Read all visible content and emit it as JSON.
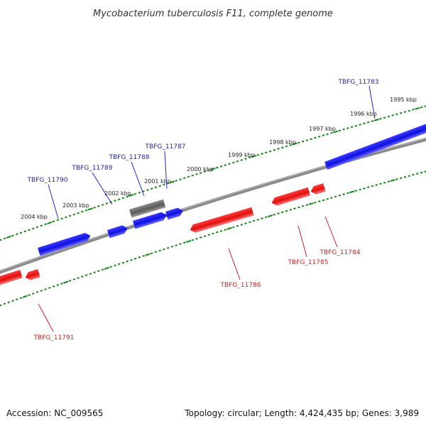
{
  "title": "Mycobacterium tuberculosis F11, complete genome",
  "footer": {
    "accession": "Accession: NC_009565",
    "summary": "Topology: circular; Length: 4,424,435 bp; Genes: 3,989"
  },
  "colors": {
    "forward": "#1010e0",
    "reverse": "#e01010",
    "other": "#707070",
    "backbone": "#8a8a8a",
    "ticks": "#118811",
    "forward_label": "#2222aa",
    "reverse_label": "#cc2222"
  },
  "map": {
    "ticks": [
      {
        "label": "1995 kbp",
        "position_kbp": 1995
      },
      {
        "label": "1996 kbp",
        "position_kbp": 1996
      },
      {
        "label": "1997 kbp",
        "position_kbp": 1997
      },
      {
        "label": "1998 kbp",
        "position_kbp": 1998
      },
      {
        "label": "1999 kbp",
        "position_kbp": 1999
      },
      {
        "label": "2000 kbp",
        "position_kbp": 2000
      },
      {
        "label": "2001 kbp",
        "position_kbp": 2001
      },
      {
        "label": "2002 kbp",
        "position_kbp": 2002
      },
      {
        "label": "2003 kbp",
        "position_kbp": 2003
      },
      {
        "label": "2004 kbp",
        "position_kbp": 2004
      }
    ],
    "forward_labels": [
      "TBFG_11783",
      "TBFG_11787",
      "TBFG_11788",
      "TBFG_11789",
      "TBFG_11790"
    ],
    "reverse_labels": [
      "TBFG_11784",
      "TBFG_11785",
      "TBFG_11786",
      "TBFG_11791"
    ]
  }
}
